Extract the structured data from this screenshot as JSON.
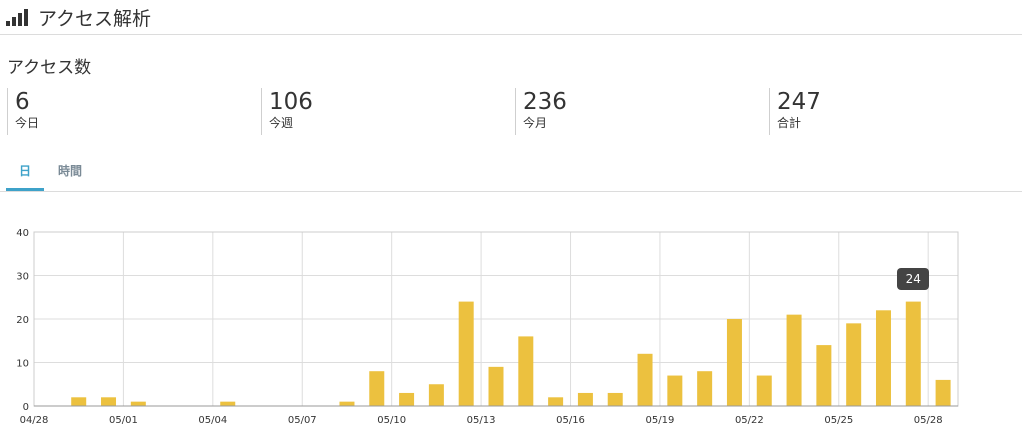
{
  "header": {
    "title": "アクセス解析",
    "icon": "signal-bars-icon"
  },
  "section": {
    "title": "アクセス数"
  },
  "stats": [
    {
      "value": "6",
      "label": "今日"
    },
    {
      "value": "106",
      "label": "今週"
    },
    {
      "value": "236",
      "label": "今月"
    },
    {
      "value": "247",
      "label": "合計"
    }
  ],
  "tabs": [
    {
      "label": "日",
      "active": true
    },
    {
      "label": "時間",
      "active": false
    }
  ],
  "tooltip": {
    "value": "24"
  },
  "colors": {
    "bar": "#ecc13f",
    "accent": "#3ea2c9",
    "grid": "#dddddd"
  },
  "chart_data": {
    "type": "bar",
    "x": [
      "04/28",
      "04/29",
      "04/30",
      "05/01",
      "05/02",
      "05/03",
      "05/04",
      "05/05",
      "05/06",
      "05/07",
      "05/08",
      "05/09",
      "05/10",
      "05/11",
      "05/12",
      "05/13",
      "05/14",
      "05/15",
      "05/16",
      "05/17",
      "05/18",
      "05/19",
      "05/20",
      "05/21",
      "05/22",
      "05/23",
      "05/24",
      "05/25",
      "05/26",
      "05/27",
      "05/28"
    ],
    "values": [
      0,
      2,
      2,
      1,
      0,
      0,
      1,
      0,
      0,
      0,
      1,
      8,
      3,
      5,
      24,
      9,
      16,
      2,
      3,
      3,
      12,
      7,
      8,
      20,
      7,
      21,
      14,
      19,
      22,
      24,
      6
    ],
    "x_tick_labels": [
      "04/28",
      "05/01",
      "05/04",
      "05/07",
      "05/10",
      "05/13",
      "05/16",
      "05/19",
      "05/22",
      "05/25",
      "05/28"
    ],
    "y_ticks": [
      "0",
      "10",
      "20",
      "30",
      "40"
    ],
    "ylim": [
      0,
      40
    ],
    "grid": true
  }
}
